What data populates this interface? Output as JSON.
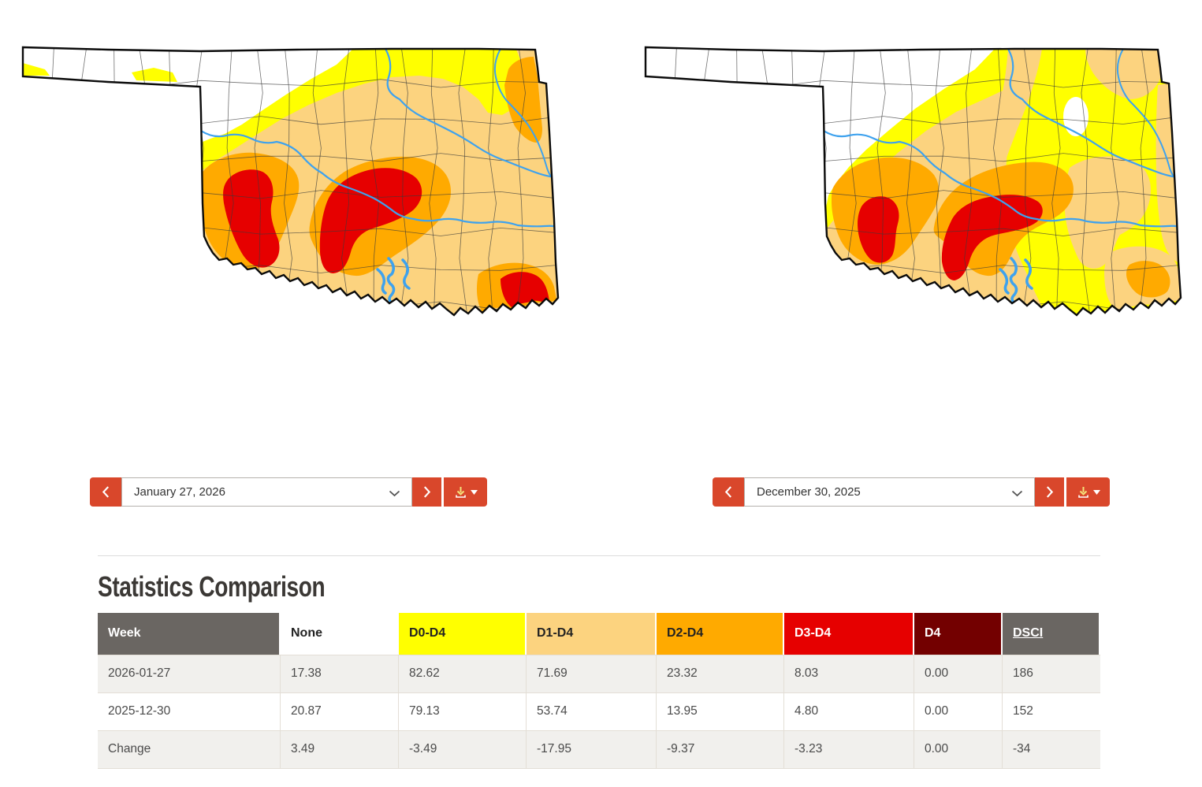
{
  "maps": {
    "left": {
      "date": "January 27, 2026"
    },
    "right": {
      "date": "December 30, 2025"
    }
  },
  "controls": {
    "prev_icon": "chevron-left",
    "next_icon": "chevron-right",
    "select_caret_icon": "chevron-down",
    "download_icon": "download-tray-arrow",
    "download_caret_icon": "caret-down"
  },
  "statistics": {
    "title": "Statistics Comparison",
    "columns": [
      {
        "label": "Week",
        "bg": "#6a6662",
        "fg": "#ffffff"
      },
      {
        "label": "None",
        "bg": "#ffffff",
        "fg": "#222222"
      },
      {
        "label": "D0-D4",
        "bg": "#ffff00",
        "fg": "#222222"
      },
      {
        "label": "D1-D4",
        "bg": "#fcd37f",
        "fg": "#222222"
      },
      {
        "label": "D2-D4",
        "bg": "#ffaa00",
        "fg": "#222222"
      },
      {
        "label": "D3-D4",
        "bg": "#e60000",
        "fg": "#ffffff"
      },
      {
        "label": "D4",
        "bg": "#730000",
        "fg": "#ffffff"
      },
      {
        "label": "DSCI",
        "bg": "#6a6662",
        "fg": "#ffffff",
        "link": true
      }
    ],
    "rows": [
      {
        "cells": [
          "2026-01-27",
          "17.38",
          "82.62",
          "71.69",
          "23.32",
          "8.03",
          "0.00",
          "186"
        ]
      },
      {
        "cells": [
          "2025-12-30",
          "20.87",
          "79.13",
          "53.74",
          "13.95",
          "4.80",
          "0.00",
          "152"
        ]
      },
      {
        "cells": [
          "Change",
          "3.49",
          "-3.49",
          "-17.95",
          "-9.37",
          "-3.23",
          "0.00",
          "-34"
        ]
      }
    ]
  },
  "drought_colors": {
    "none": "#ffffff",
    "d0": "#ffff00",
    "d1": "#fcd37f",
    "d2": "#ffaa00",
    "d3": "#e60000",
    "d4": "#730000"
  },
  "theme": {
    "accent": "#d9472b",
    "river": "#3ea2ee",
    "header_gray": "#6a6662",
    "row_stripe": "#f1f0ed",
    "border": "#e3ded6"
  }
}
